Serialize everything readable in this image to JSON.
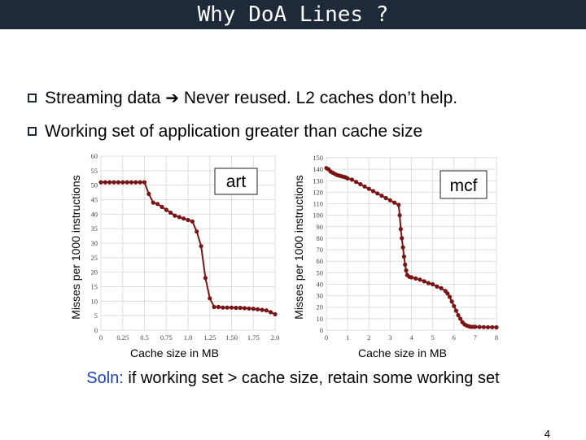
{
  "slide": {
    "title": "Why DoA Lines ?",
    "bullets": [
      {
        "before": "Streaming data",
        "after": "Never reused. L2 caches don’t help."
      },
      {
        "text": "Working set of application greater than cache size"
      }
    ],
    "solution_prefix": "Soln:",
    "solution_text": " if working set > cache size, retain some working set",
    "page_number": "4"
  },
  "colors": {
    "title_bar": "#1e2a3a",
    "curve": "#7a1515",
    "accent": "#1f3fbf",
    "box": "#1e2a3a"
  },
  "icons": {
    "bullet": "checkbox-bullet-icon",
    "arrow": "right-arrow-icon"
  },
  "chart_data": [
    {
      "type": "line",
      "series": [
        {
          "name": "art",
          "x": [
            0,
            0.05,
            0.1,
            0.15,
            0.2,
            0.25,
            0.3,
            0.35,
            0.4,
            0.45,
            0.5,
            0.55,
            0.6,
            0.65,
            0.7,
            0.75,
            0.8,
            0.85,
            0.9,
            0.95,
            1.0,
            1.05,
            1.1,
            1.15,
            1.2,
            1.25,
            1.3,
            1.35,
            1.4,
            1.45,
            1.5,
            1.55,
            1.6,
            1.65,
            1.7,
            1.75,
            1.8,
            1.85,
            1.9,
            1.95,
            2.0
          ],
          "values": [
            51,
            51,
            51,
            51,
            51,
            51,
            51,
            51,
            51,
            51,
            51,
            47,
            44,
            43.5,
            42.5,
            41.5,
            40.5,
            39.5,
            39,
            38.5,
            38,
            37.5,
            34,
            29,
            18,
            11,
            8,
            8,
            7.8,
            7.8,
            7.8,
            7.7,
            7.7,
            7.6,
            7.5,
            7.4,
            7.2,
            7,
            6.8,
            6.2,
            5.5
          ]
        }
      ],
      "xlabel": "Cache size in MB",
      "ylabel": "Misses per 1000 instructions",
      "xlim": [
        0,
        2
      ],
      "ylim": [
        0,
        60
      ],
      "x_ticks": [
        "0",
        "0.25",
        "0.5",
        "0.75",
        "1.0",
        "1.25",
        "1.50",
        "1.75",
        "2.0"
      ],
      "y_ticks": [
        "0",
        "5",
        "10",
        "15",
        "20",
        "25",
        "30",
        "35",
        "40",
        "45",
        "50",
        "55",
        "60"
      ],
      "grid": true,
      "legend": "top-right"
    },
    {
      "type": "line",
      "series": [
        {
          "name": "mcf",
          "x": [
            0,
            0.1,
            0.2,
            0.3,
            0.4,
            0.5,
            0.6,
            0.7,
            0.8,
            0.9,
            1.0,
            1.2,
            1.4,
            1.6,
            1.8,
            2.0,
            2.2,
            2.4,
            2.6,
            2.8,
            3.0,
            3.2,
            3.4,
            3.45,
            3.5,
            3.55,
            3.6,
            3.65,
            3.7,
            3.75,
            3.8,
            3.9,
            4.0,
            4.2,
            4.4,
            4.6,
            4.8,
            5.0,
            5.2,
            5.4,
            5.6,
            5.7,
            5.8,
            5.9,
            6.0,
            6.1,
            6.2,
            6.3,
            6.4,
            6.5,
            6.6,
            6.7,
            6.8,
            6.9,
            7.0,
            7.2,
            7.4,
            7.6,
            7.8,
            8.0
          ],
          "values": [
            141,
            140,
            138,
            137,
            136,
            135,
            134.5,
            134,
            133.5,
            133,
            132,
            131,
            129,
            127,
            125,
            123,
            121,
            119,
            117,
            115,
            113,
            111,
            109,
            100,
            88,
            80,
            72,
            64,
            57,
            52,
            48,
            46.5,
            46,
            45,
            44,
            42.5,
            41,
            40,
            38,
            36.5,
            34,
            32,
            29,
            25,
            21,
            17,
            13,
            10,
            7,
            5,
            4,
            3.5,
            3,
            3,
            3,
            2.8,
            2.7,
            2.6,
            2.6,
            2.5
          ]
        }
      ],
      "xlabel": "Cache size in MB",
      "ylabel": "Misses per 1000 instructions",
      "xlim": [
        0,
        8
      ],
      "ylim": [
        0,
        150
      ],
      "x_ticks": [
        "0",
        "1",
        "2",
        "3",
        "4",
        "5",
        "6",
        "7",
        "8"
      ],
      "y_ticks": [
        "0",
        "10",
        "20",
        "30",
        "40",
        "50",
        "60",
        "70",
        "80",
        "90",
        "100",
        "110",
        "120",
        "130",
        "140",
        "150"
      ],
      "grid": true,
      "legend": "top-right"
    }
  ]
}
